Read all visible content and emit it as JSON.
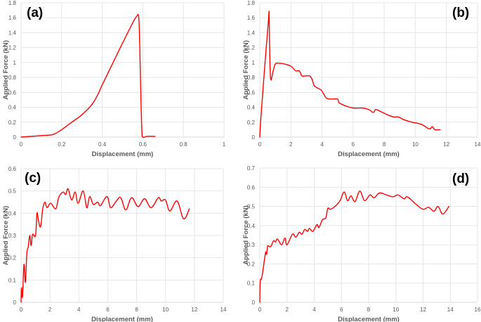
{
  "figure": {
    "line_color": "#ff0000",
    "grid_color": "#e6e6e6"
  },
  "chart_data": [
    {
      "id": "a",
      "panel_label": "(a)",
      "type": "line",
      "title": "",
      "xlabel": "Displacement (mm)",
      "ylabel": "Applied Force (kN)",
      "xlim": [
        0,
        1
      ],
      "ylim": [
        0,
        1.8
      ],
      "xticks": [
        0,
        0.2,
        0.4,
        0.6,
        0.8,
        1
      ],
      "xtick_labels": [
        "0",
        "0.2",
        "0.4",
        "0.6",
        "0.8",
        "1"
      ],
      "yticks": [
        0,
        0.2,
        0.4,
        0.6,
        0.8,
        1,
        1.2,
        1.4,
        1.6,
        1.8
      ],
      "ytick_labels": [
        "0",
        "0.2",
        "0.4",
        "0.6",
        "0.8",
        "1",
        "1.2",
        "1.4",
        "1.6",
        "1.8"
      ],
      "grid": true,
      "legend": "none",
      "series": [
        {
          "name": "Applied Force",
          "x": [
            0,
            0.05,
            0.1,
            0.15,
            0.17,
            0.2,
            0.25,
            0.3,
            0.35,
            0.38,
            0.4,
            0.45,
            0.5,
            0.55,
            0.57,
            0.58,
            0.585,
            0.59,
            0.595,
            0.6,
            0.62,
            0.66
          ],
          "y": [
            0,
            0.01,
            0.02,
            0.03,
            0.05,
            0.1,
            0.2,
            0.3,
            0.44,
            0.58,
            0.7,
            0.98,
            1.26,
            1.53,
            1.62,
            1.6,
            1.2,
            0.6,
            0.1,
            0.0,
            0.01,
            0.01
          ]
        }
      ]
    },
    {
      "id": "b",
      "panel_label": "(b)",
      "type": "line",
      "title": "",
      "xlabel": "Displacement (mm)",
      "ylabel": "Applied Force (kN)",
      "xlim": [
        0,
        14
      ],
      "ylim": [
        0,
        1.8
      ],
      "xticks": [
        0,
        2,
        4,
        6,
        8,
        10,
        12,
        14
      ],
      "xtick_labels": [
        "0",
        "2",
        "4",
        "6",
        "8",
        "10",
        "12",
        "14"
      ],
      "yticks": [
        0,
        0.2,
        0.4,
        0.6,
        0.8,
        1,
        1.2,
        1.4,
        1.6,
        1.8
      ],
      "ytick_labels": [
        "0",
        "0.2",
        "0.4",
        "0.6",
        "0.8",
        "1",
        "1.2",
        "1.4",
        "1.6",
        "1.8"
      ],
      "grid": true,
      "legend": "none",
      "series": [
        {
          "name": "Applied Force",
          "x": [
            0,
            0.05,
            0.3,
            0.55,
            0.6,
            0.63,
            0.7,
            0.85,
            1.0,
            1.2,
            1.6,
            2.0,
            2.3,
            2.5,
            2.6,
            2.7,
            2.9,
            3.2,
            3.35,
            3.5,
            3.7,
            3.95,
            4.1,
            4.3,
            4.6,
            5.0,
            5.1,
            5.5,
            6.0,
            6.6,
            7.0,
            7.3,
            7.45,
            7.7,
            8.2,
            8.6,
            8.9,
            9.3,
            9.8,
            10.4,
            10.9,
            11.1,
            11.25,
            11.6
          ],
          "y": [
            0,
            0.2,
            0.9,
            1.55,
            1.66,
            1.2,
            0.78,
            0.88,
            0.98,
            0.99,
            0.98,
            0.95,
            0.89,
            0.89,
            0.87,
            0.82,
            0.82,
            0.82,
            0.78,
            0.69,
            0.66,
            0.63,
            0.58,
            0.52,
            0.51,
            0.51,
            0.46,
            0.42,
            0.39,
            0.39,
            0.37,
            0.33,
            0.37,
            0.35,
            0.3,
            0.27,
            0.27,
            0.23,
            0.2,
            0.17,
            0.11,
            0.14,
            0.1,
            0.1
          ]
        }
      ]
    },
    {
      "id": "c",
      "panel_label": "(c)",
      "type": "line",
      "title": "",
      "xlabel": "Displacement (mm)",
      "ylabel": "Applied Force (kN)",
      "xlim": [
        0,
        14
      ],
      "ylim": [
        0,
        0.6
      ],
      "xticks": [
        0,
        2,
        4,
        6,
        8,
        10,
        12,
        14
      ],
      "xtick_labels": [
        "0",
        "2",
        "4",
        "6",
        "8",
        "10",
        "12",
        "14"
      ],
      "yticks": [
        0,
        0.1,
        0.2,
        0.3,
        0.4,
        0.5,
        0.6
      ],
      "ytick_labels": [
        "0",
        "0.1",
        "0.2",
        "0.3",
        "0.4",
        "0.5",
        "0.6"
      ],
      "grid": true,
      "legend": "none",
      "series": [
        {
          "name": "Applied Force",
          "x": [
            0,
            0.03,
            0.1,
            0.2,
            0.3,
            0.4,
            0.5,
            0.6,
            0.7,
            0.8,
            1.0,
            1.1,
            1.2,
            1.35,
            1.5,
            1.65,
            1.8,
            2.05,
            2.4,
            2.6,
            2.9,
            3.1,
            3.25,
            3.5,
            3.75,
            3.95,
            4.3,
            4.55,
            4.75,
            5.0,
            5.3,
            5.5,
            5.95,
            6.2,
            6.6,
            6.9,
            7.25,
            7.65,
            8.1,
            8.55,
            9.0,
            9.5,
            9.7,
            10.0,
            10.3,
            10.8,
            11.25,
            11.65
          ],
          "y": [
            0.0,
            0.065,
            0.025,
            0.17,
            0.09,
            0.22,
            0.25,
            0.3,
            0.255,
            0.305,
            0.3,
            0.4,
            0.37,
            0.34,
            0.42,
            0.45,
            0.425,
            0.445,
            0.42,
            0.47,
            0.495,
            0.485,
            0.51,
            0.46,
            0.495,
            0.445,
            0.5,
            0.425,
            0.475,
            0.44,
            0.45,
            0.435,
            0.475,
            0.425,
            0.455,
            0.47,
            0.415,
            0.47,
            0.43,
            0.465,
            0.425,
            0.47,
            0.455,
            0.46,
            0.41,
            0.455,
            0.375,
            0.42
          ]
        }
      ]
    },
    {
      "id": "d",
      "panel_label": "(d)",
      "type": "line",
      "title": "",
      "xlabel": "Displacement (mm)",
      "ylabel": "Applied Force (kN)",
      "xlim": [
        0,
        16
      ],
      "ylim": [
        0,
        0.7
      ],
      "xticks": [
        0,
        2,
        4,
        6,
        8,
        10,
        12,
        14,
        16
      ],
      "xtick_labels": [
        "0",
        "2",
        "4",
        "6",
        "8",
        "10",
        "12",
        "14",
        "16"
      ],
      "yticks": [
        0,
        0.1,
        0.2,
        0.3,
        0.4,
        0.5,
        0.6,
        0.7
      ],
      "ytick_labels": [
        "0",
        "0.1",
        "0.2",
        "0.3",
        "0.4",
        "0.5",
        "0.6",
        "0.7"
      ],
      "grid": true,
      "legend": "none",
      "series": [
        {
          "name": "Applied Force",
          "x": [
            0,
            0.03,
            0.15,
            0.4,
            0.45,
            0.5,
            0.55,
            0.6,
            0.8,
            1.0,
            1.15,
            1.3,
            1.6,
            1.85,
            2.0,
            2.4,
            2.65,
            2.9,
            3.1,
            3.3,
            3.5,
            3.65,
            3.9,
            4.2,
            4.35,
            4.6,
            4.85,
            5.0,
            5.2,
            5.6,
            5.9,
            6.2,
            6.45,
            6.7,
            7.0,
            7.35,
            7.7,
            8.1,
            8.4,
            8.8,
            9.3,
            9.8,
            10.15,
            10.6,
            10.85,
            11.5,
            12.0,
            12.4,
            12.8,
            13.1,
            13.45,
            13.9
          ],
          "y": [
            0.0,
            0.11,
            0.13,
            0.25,
            0.26,
            0.25,
            0.28,
            0.295,
            0.29,
            0.32,
            0.315,
            0.33,
            0.3,
            0.335,
            0.3,
            0.355,
            0.34,
            0.365,
            0.355,
            0.38,
            0.37,
            0.385,
            0.37,
            0.405,
            0.39,
            0.43,
            0.44,
            0.49,
            0.485,
            0.505,
            0.53,
            0.575,
            0.53,
            0.555,
            0.525,
            0.58,
            0.53,
            0.56,
            0.545,
            0.57,
            0.56,
            0.55,
            0.56,
            0.54,
            0.55,
            0.51,
            0.485,
            0.495,
            0.475,
            0.5,
            0.46,
            0.5
          ]
        }
      ]
    }
  ]
}
